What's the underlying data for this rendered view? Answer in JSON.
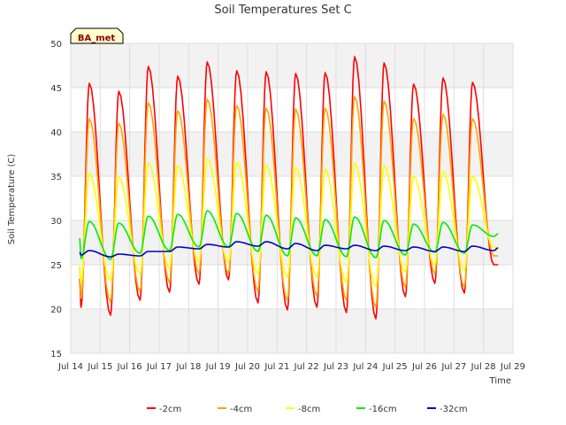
{
  "chart_data": {
    "type": "line",
    "title": "Soil Temperatures Set C",
    "xlabel": "Time",
    "ylabel": "Soil Temperature (C)",
    "badge": "BA_met",
    "xlim": [
      14,
      29
    ],
    "ylim": [
      15,
      50
    ],
    "x_ticks": [
      "Jul 14",
      "Jul 15",
      "Jul 16",
      "Jul 17",
      "Jul 18",
      "Jul 19",
      "Jul 20",
      "Jul 21",
      "Jul 22",
      "Jul 23",
      "Jul 24",
      "Jul 25",
      "Jul 26",
      "Jul 27",
      "Jul 28",
      "Jul 29"
    ],
    "y_ticks": [
      15,
      20,
      25,
      30,
      35,
      40,
      45,
      50
    ],
    "grid": true,
    "legend_position": "bottom",
    "x_start_day": 14.3,
    "x_end_day": 28.5,
    "series": [
      {
        "name": "-2cm",
        "color": "#ff0000",
        "daily_min": [
          20.2,
          19.3,
          21.0,
          21.9,
          22.8,
          23.3,
          20.7,
          19.9,
          20.2,
          19.6,
          18.9,
          21.4,
          22.9,
          21.8,
          25.0
        ],
        "daily_max": [
          45.5,
          44.6,
          47.4,
          46.3,
          47.9,
          46.9,
          46.8,
          46.6,
          46.7,
          48.5,
          47.8,
          45.4,
          46.1,
          45.6
        ],
        "start": 23.4,
        "end": 25.0
      },
      {
        "name": "-4cm",
        "color": "#ffa500",
        "daily_min": [
          21.2,
          20.8,
          22.0,
          23.0,
          24.0,
          24.0,
          22.0,
          21.0,
          21.5,
          21.0,
          20.2,
          22.5,
          24.0,
          22.5,
          26.0
        ],
        "daily_max": [
          41.5,
          41.0,
          43.3,
          42.4,
          43.7,
          43.0,
          42.7,
          42.6,
          42.7,
          44.0,
          43.5,
          41.5,
          42.0,
          41.5
        ],
        "start": 24.8,
        "end": 26.0
      },
      {
        "name": "-8cm",
        "color": "#ffff00",
        "daily_min": [
          23.0,
          23.2,
          24.0,
          24.6,
          25.3,
          25.3,
          24.0,
          23.6,
          23.6,
          23.0,
          22.6,
          24.2,
          25.0,
          24.4,
          27.0
        ],
        "daily_max": [
          35.3,
          34.9,
          36.5,
          36.2,
          37.0,
          36.6,
          36.3,
          36.0,
          35.8,
          36.5,
          36.2,
          35.0,
          35.5,
          35.0
        ],
        "start": 24.9,
        "end": 27.0
      },
      {
        "name": "-16cm",
        "color": "#00ee00",
        "daily_min": [
          25.7,
          25.6,
          26.3,
          26.6,
          27.0,
          27.0,
          26.5,
          26.0,
          26.0,
          25.9,
          25.8,
          26.1,
          26.4,
          26.3,
          28.2
        ],
        "daily_max": [
          29.9,
          29.7,
          30.5,
          30.7,
          31.1,
          30.8,
          30.6,
          30.3,
          30.1,
          30.4,
          30.0,
          29.6,
          29.8,
          29.5
        ],
        "start": 28.0,
        "end": 28.5
      },
      {
        "name": "-32cm",
        "color": "#0000cd",
        "daily_min": [
          26.1,
          25.9,
          26.0,
          26.5,
          26.8,
          27.0,
          27.1,
          26.8,
          26.6,
          26.8,
          26.6,
          26.6,
          26.5,
          26.5,
          26.6
        ],
        "daily_max": [
          26.6,
          26.2,
          26.5,
          27.0,
          27.3,
          27.6,
          27.6,
          27.4,
          27.2,
          27.2,
          27.1,
          27.0,
          27.0,
          27.1
        ],
        "start": 26.4,
        "end": 26.9
      }
    ]
  }
}
